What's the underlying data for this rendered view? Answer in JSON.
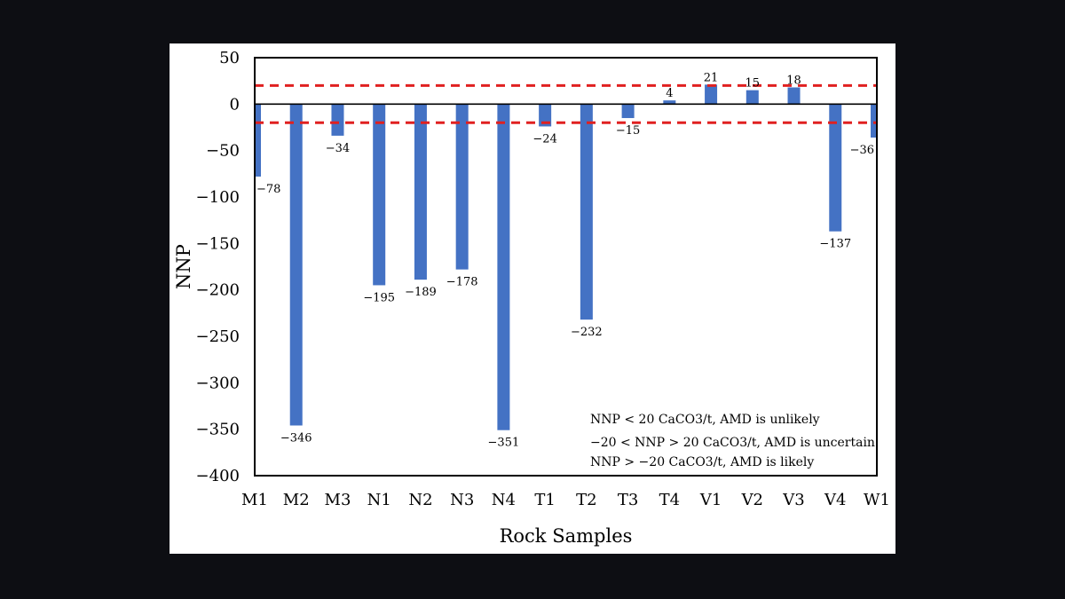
{
  "chart_data": {
    "type": "bar",
    "xlabel": "Rock Samples",
    "ylabel": "NNP",
    "ylim": [
      -400,
      50
    ],
    "yticks": [
      50,
      0,
      -50,
      -100,
      -150,
      -200,
      -250,
      -300,
      -350,
      -400
    ],
    "ytick_labels": [
      "50",
      "0",
      "−50",
      "−100",
      "−150",
      "−200",
      "−250",
      "−300",
      "−350",
      "−400"
    ],
    "categories": [
      "M1",
      "M2",
      "M3",
      "N1",
      "N2",
      "N3",
      "N4",
      "T1",
      "T2",
      "T3",
      "T4",
      "V1",
      "V2",
      "V3",
      "V4",
      "W1"
    ],
    "values": [
      -78,
      -346,
      -34,
      -195,
      -189,
      -178,
      -351,
      -24,
      -232,
      -15,
      4,
      21,
      15,
      18,
      -137,
      -36
    ],
    "data_labels": [
      "−78",
      "−346",
      "−34",
      "−195",
      "−189",
      "−178",
      "−351",
      "−24",
      "−232",
      "−15",
      "4",
      "21",
      "15",
      "18",
      "−137",
      "−36"
    ],
    "bar_color": "#4472c4",
    "reference_lines": [
      20,
      -20
    ],
    "reference_line_color": "#e02020",
    "grid": false,
    "annotation_lines": [
      "NNP < 20 CaCO3/t, AMD is unlikely",
      "−20 < NNP > 20 CaCO3/t, AMD is uncertain",
      "NNP > −20 CaCO3/t, AMD is likely"
    ]
  }
}
